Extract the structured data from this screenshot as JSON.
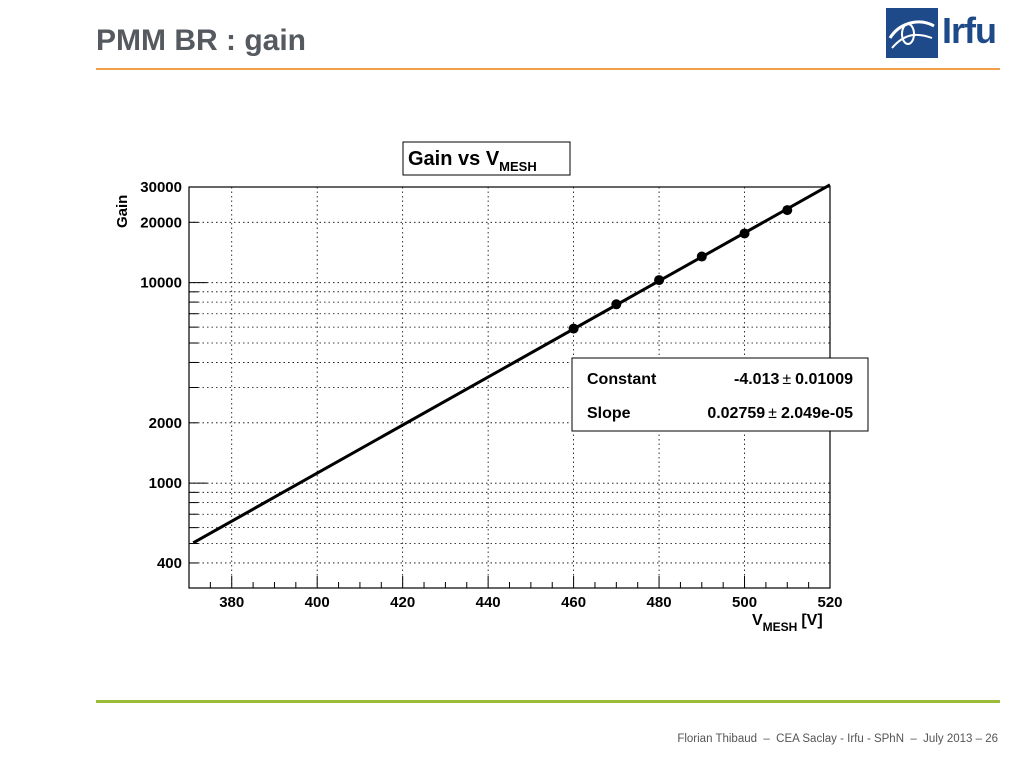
{
  "slide": {
    "title": "PMM BR : gain",
    "footer": "Florian Thibaud  –  CEA Saclay - Irfu - SPhN  –  July 2013 – 26",
    "logo_text": "Irfu"
  },
  "colors": {
    "title": "#555a60",
    "top_rule": "#f0a04b",
    "bottom_rule": "#9bbb3a",
    "logo_blue": "#1f4a8a"
  },
  "chart_data": {
    "type": "scatter",
    "title_main": "Gain vs V",
    "title_sub": "MESH",
    "xlabel_main": "V",
    "xlabel_sub": "MESH",
    "xlabel_unit": "[V]",
    "ylabel": "Gain",
    "xlim": [
      370,
      520
    ],
    "ylim": [
      300,
      30000
    ],
    "yscale": "log",
    "grid": true,
    "x_ticks": [
      "380",
      "400",
      "420",
      "440",
      "460",
      "480",
      "500",
      "520"
    ],
    "y_ticks": [
      {
        "value": 400,
        "label": "400"
      },
      {
        "value": 1000,
        "label": "1000"
      },
      {
        "value": 2000,
        "label": "2000"
      },
      {
        "value": 10000,
        "label": "10000"
      },
      {
        "value": 20000,
        "label": "20000"
      },
      {
        "value": 30000,
        "label": "30000"
      }
    ],
    "series": [
      {
        "x": [
          460,
          470,
          480,
          490,
          500,
          510
        ],
        "y": [
          5900,
          7800,
          10300,
          13500,
          17600,
          23000
        ]
      }
    ],
    "fit": {
      "function": "exp",
      "constant": -4.013,
      "slope": 0.02759,
      "x_range": [
        371,
        520
      ]
    },
    "stats_box": {
      "placement": "right-middle",
      "rows": [
        {
          "name": "Constant",
          "value": "-4.013",
          "pm": "±",
          "error": "0.01009"
        },
        {
          "name": "Slope",
          "value": "0.02759",
          "pm": "±",
          "error": "2.049e-05"
        }
      ]
    }
  }
}
